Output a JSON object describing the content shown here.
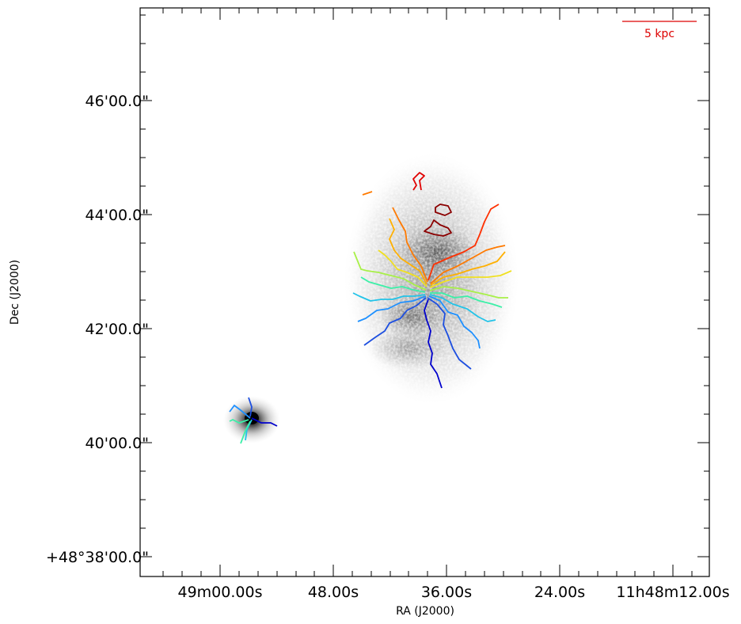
{
  "chart_data": {
    "type": "image",
    "xlabel": "RA (J2000)",
    "ylabel": "Dec (J2000)",
    "x_tick_labels": [
      "49m00.00s",
      "48.00s",
      "36.00s",
      "24.00s",
      "11h48m12.00s"
    ],
    "y_tick_labels": [
      "+48°38'00.0\"",
      "40'00.0\"",
      "42'00.0\"",
      "44'00.0\"",
      "46'00.0\""
    ],
    "scale_bar": {
      "label": "5 kpc",
      "color": "#dd0000"
    },
    "background_map": "greyscale HI column density of a large galaxy and a small companion",
    "contour_colors": [
      "#0000cc",
      "#1d4fe0",
      "#1e90ff",
      "#22c3e8",
      "#3cf0a8",
      "#a8f048",
      "#f0e020",
      "#ffb000",
      "#ff7a00",
      "#ff3000",
      "#e00000",
      "#8b0000"
    ]
  }
}
